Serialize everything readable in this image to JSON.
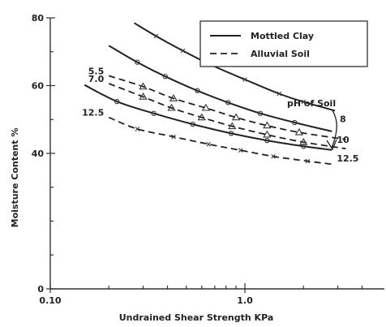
{
  "chart_data": {
    "type": "line",
    "x_scale": "log",
    "xlabel": "Undrained Shear Strength KPa",
    "ylabel": "Moisture Content %",
    "xlim": [
      0.1,
      4.0
    ],
    "ylim": [
      0,
      80
    ],
    "x_ticks": [
      {
        "value": 0.1,
        "label": "0.10"
      },
      {
        "value": 1.0,
        "label": "1.0"
      }
    ],
    "y_ticks": [
      {
        "value": 0,
        "label": "0"
      },
      {
        "value": 40,
        "label": "40"
      },
      {
        "value": 60,
        "label": "60"
      },
      {
        "value": 80,
        "label": "80"
      }
    ],
    "legend": {
      "placement": "top-right",
      "entries": [
        {
          "label": "Mottled Clay",
          "style": "solid"
        },
        {
          "label": "Alluvial Soil",
          "style": "dashed"
        }
      ]
    },
    "annotation": {
      "text": "pH of Soil"
    },
    "series": [
      {
        "name": "8",
        "type": "Mottled Clay",
        "style": "solid",
        "label_side": "right",
        "points": [
          [
            0.27,
            78.5
          ],
          [
            0.35,
            74.6
          ],
          [
            0.48,
            70.3
          ],
          [
            0.67,
            66.1
          ],
          [
            1.0,
            61.8
          ],
          [
            1.5,
            57.6
          ],
          [
            2.0,
            55.2
          ],
          [
            2.9,
            52.6
          ]
        ]
      },
      {
        "name": "10",
        "type": "Mottled Clay",
        "style": "solid",
        "label_side": "right",
        "points": [
          [
            0.2,
            71.8
          ],
          [
            0.28,
            66.9
          ],
          [
            0.39,
            62.7
          ],
          [
            0.57,
            58.5
          ],
          [
            0.82,
            55.0
          ],
          [
            1.2,
            51.8
          ],
          [
            1.8,
            49.1
          ],
          [
            2.8,
            46.5
          ]
        ]
      },
      {
        "name": "12.5",
        "type": "Mottled Clay",
        "style": "solid",
        "label_side": "right",
        "points": [
          [
            0.15,
            60.2
          ],
          [
            0.22,
            55.3
          ],
          [
            0.34,
            51.8
          ],
          [
            0.54,
            48.6
          ],
          [
            0.85,
            45.9
          ],
          [
            1.3,
            43.8
          ],
          [
            2.0,
            42.1
          ],
          [
            2.8,
            41.0
          ]
        ]
      },
      {
        "name": "5.5",
        "type": "Alluvial Soil",
        "style": "dashed",
        "label_side": "left",
        "points": [
          [
            0.2,
            62.9
          ],
          [
            0.3,
            59.7
          ],
          [
            0.43,
            56.2
          ],
          [
            0.63,
            53.4
          ],
          [
            0.9,
            50.6
          ],
          [
            1.3,
            48.2
          ],
          [
            1.9,
            46.2
          ],
          [
            3.3,
            44.1
          ]
        ]
      },
      {
        "name": "7.0",
        "type": "Alluvial Soil",
        "style": "dashed",
        "label_side": "left",
        "points": [
          [
            0.2,
            60.6
          ],
          [
            0.3,
            56.7
          ],
          [
            0.42,
            53.4
          ],
          [
            0.6,
            50.6
          ],
          [
            0.86,
            48.0
          ],
          [
            1.3,
            45.5
          ],
          [
            2.0,
            43.3
          ],
          [
            3.3,
            41.4
          ]
        ]
      },
      {
        "name": "12.5",
        "type": "Alluvial Soil",
        "style": "dashed",
        "label_side": "left",
        "points": [
          [
            0.2,
            50.6
          ],
          [
            0.28,
            47.2
          ],
          [
            0.43,
            44.9
          ],
          [
            0.65,
            42.7
          ],
          [
            0.95,
            40.9
          ],
          [
            1.4,
            39.1
          ],
          [
            2.1,
            37.7
          ],
          [
            2.9,
            36.7
          ]
        ]
      }
    ]
  }
}
